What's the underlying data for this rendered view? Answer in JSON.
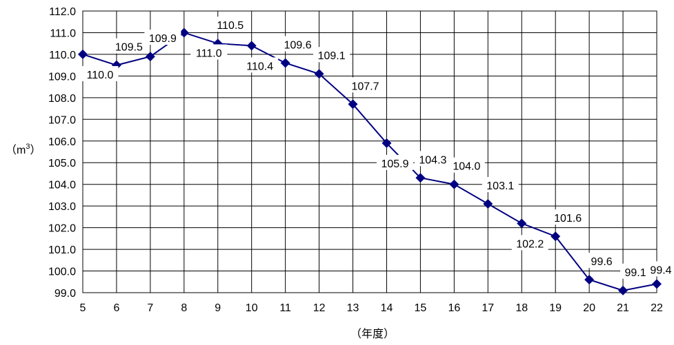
{
  "chart_data": {
    "type": "line",
    "title": "",
    "xlabel": "（年度）",
    "ylabel": "（m³）",
    "ylabel_main": "（m",
    "ylabel_sup": "3",
    "ylabel_close": "）",
    "x": [
      5,
      6,
      7,
      8,
      9,
      10,
      11,
      12,
      13,
      14,
      15,
      16,
      17,
      18,
      19,
      20,
      21,
      22
    ],
    "x_tick_labels": [
      "5",
      "6",
      "7",
      "8",
      "9",
      "10",
      "11",
      "12",
      "13",
      "14",
      "15",
      "16",
      "17",
      "18",
      "19",
      "20",
      "21",
      "22"
    ],
    "series": [
      {
        "values": [
          110.0,
          109.5,
          109.9,
          111.0,
          110.5,
          110.4,
          109.6,
          109.1,
          107.7,
          105.9,
          104.3,
          104.0,
          103.1,
          102.2,
          101.6,
          99.6,
          99.1,
          99.4
        ],
        "labels": [
          "110.0",
          "109.5",
          "109.9",
          "111.0",
          "110.5",
          "110.4",
          "109.6",
          "109.1",
          "107.7",
          "105.9",
          "104.3",
          "104.0",
          "103.1",
          "102.2",
          "101.6",
          "99.6",
          "99.1",
          "99.4"
        ]
      }
    ],
    "ylim": [
      99.0,
      112.0
    ],
    "y_ticks": [
      "99.0",
      "100.0",
      "101.0",
      "102.0",
      "103.0",
      "104.0",
      "105.0",
      "106.0",
      "107.0",
      "108.0",
      "109.0",
      "110.0",
      "111.0",
      "112.0"
    ],
    "grid": true,
    "legend": "none",
    "colors": {
      "line": "#000080",
      "marker": "#000080",
      "grid": "#000000",
      "label_bg": "#ffffff"
    }
  }
}
